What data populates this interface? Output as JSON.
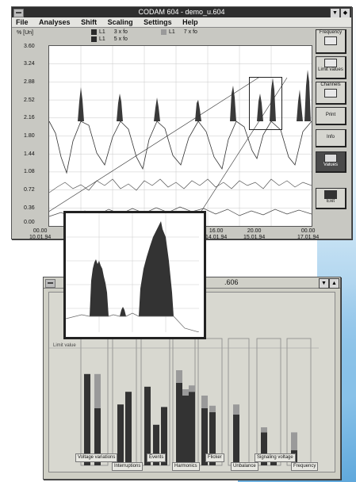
{
  "main_window": {
    "title": "CODAM 604 - demo_u.604",
    "menu": [
      "File",
      "Analyses",
      "Shift",
      "Scaling",
      "Settings",
      "Help"
    ],
    "legend": {
      "unit": "% [Un]",
      "items": [
        {
          "label": "L1",
          "desc": "3 x fo",
          "color": "#2a2a2a"
        },
        {
          "label": "L1",
          "desc": "5 x fo",
          "color": "#2a2a2a"
        },
        {
          "label": "L1",
          "desc": "7 x fo",
          "color": "#9a9a9a"
        }
      ]
    },
    "y_ticks": [
      "3.60",
      "3.24",
      "2.88",
      "2.52",
      "2.16",
      "1.80",
      "1.44",
      "1.08",
      "0.72",
      "0.36",
      "0.00"
    ],
    "x_ticks": [
      {
        "time": "00.00",
        "date": "10.01.94"
      },
      {
        "time": "16.00",
        "date": "14.01.94"
      },
      {
        "time": "20.00",
        "date": "15.01.94"
      },
      {
        "time": "00.00",
        "date": "17.01.94"
      }
    ],
    "side_buttons": [
      "Frequency",
      "Limit values",
      "Channels",
      "Print",
      "Info",
      "Values",
      "Exit"
    ]
  },
  "second_window": {
    "title": ".606",
    "limit_label": "Limit value",
    "categories": [
      "Voltage variations",
      "Interruptions",
      "Events",
      "Harmonics",
      "Flicker",
      "Unbalance",
      "Signaling voltage",
      "Frequency"
    ],
    "bars": [
      {
        "group": "Voltage variations",
        "dark": 0.72,
        "light": 0.0
      },
      {
        "group": "Voltage variations",
        "dark": 0.45,
        "light": 0.27
      },
      {
        "group": "Interruptions",
        "dark": 0.48,
        "light": 0.0
      },
      {
        "group": "Interruptions",
        "dark": 0.58,
        "light": 0.0
      },
      {
        "group": "Events",
        "dark": 0.62,
        "light": 0.0
      },
      {
        "group": "Events",
        "dark": 0.32,
        "light": 0.0
      },
      {
        "group": "Events",
        "dark": 0.46,
        "light": 0.0
      },
      {
        "group": "Harmonics",
        "dark": 0.65,
        "light": 0.1
      },
      {
        "group": "Harmonics",
        "dark": 0.55,
        "light": 0.05
      },
      {
        "group": "Harmonics",
        "dark": 0.58,
        "light": 0.05
      },
      {
        "group": "Flicker",
        "dark": 0.45,
        "light": 0.1
      },
      {
        "group": "Flicker",
        "dark": 0.42,
        "light": 0.05
      },
      {
        "group": "Unbalance",
        "dark": 0.4,
        "light": 0.08
      },
      {
        "group": "Signaling voltage",
        "dark": 0.26,
        "light": 0.04
      },
      {
        "group": "Signaling voltage",
        "dark": 0.04,
        "light": 0.0
      },
      {
        "group": "Frequency",
        "dark": 0.12,
        "light": 0.14
      }
    ]
  },
  "colors": {
    "window_bg": "#c8c8c2",
    "trace": "#333333",
    "bar_dark": "#333333",
    "bar_light": "#9a9a9a"
  }
}
